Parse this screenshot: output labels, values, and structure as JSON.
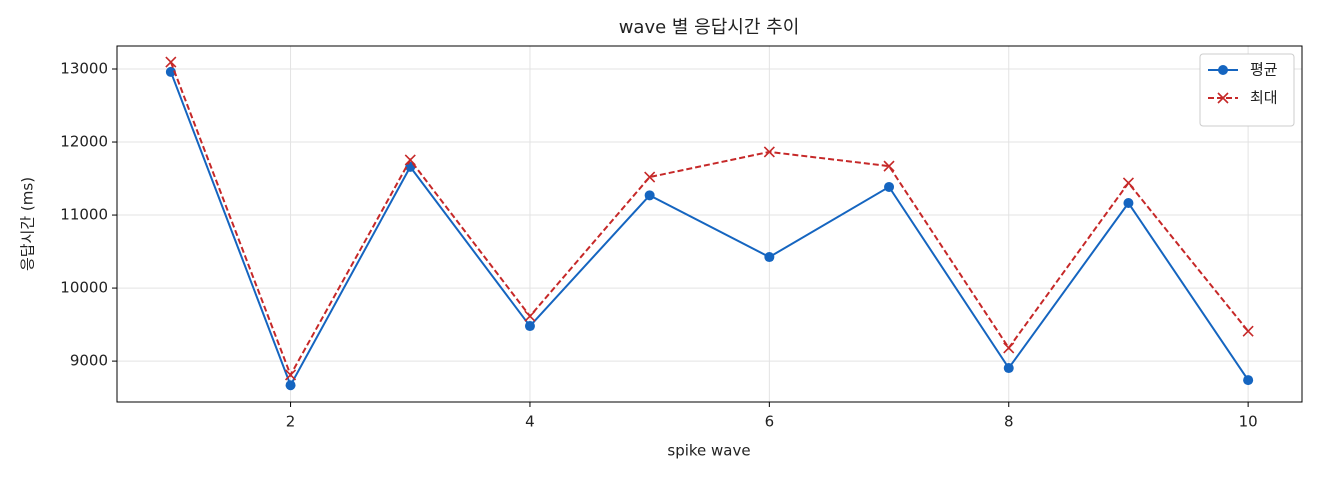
{
  "chart_data": {
    "type": "line",
    "title": "wave 별 응답시간 추이",
    "x_label": "spike wave",
    "y_label": "응답시간 (ms)",
    "x": [
      1,
      2,
      3,
      4,
      5,
      6,
      7,
      8,
      9,
      10
    ],
    "series": [
      {
        "name": "평균",
        "color": "#1565c0",
        "marker": "circle",
        "linestyle": "solid",
        "values": [
          12960,
          8670,
          11660,
          9480,
          11270,
          10425,
          11385,
          8905,
          11165,
          8740
        ]
      },
      {
        "name": "최대",
        "color": "#c62828",
        "marker": "x",
        "linestyle": "dashed",
        "values": [
          13095,
          8810,
          11755,
          9615,
          11520,
          11865,
          11670,
          9180,
          11440,
          9410
        ]
      }
    ],
    "xlim": [
      0.55,
      10.45
    ],
    "ylim": [
      8440,
      13315
    ],
    "xticks": [
      2,
      4,
      6,
      8,
      10
    ],
    "yticks": [
      9000,
      10000,
      11000,
      12000,
      13000
    ],
    "grid": true,
    "legend": "upper right"
  }
}
